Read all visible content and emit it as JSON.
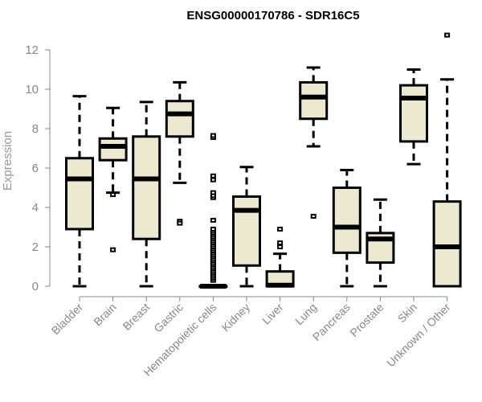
{
  "chart_data": {
    "type": "boxplot",
    "title": "ENSG00000170786 - SDR16C5",
    "xlabel": "",
    "ylabel": "Expression",
    "ylim": [
      0,
      12
    ],
    "yticks": [
      "0",
      "2",
      "4",
      "6",
      "8",
      "10",
      "12"
    ],
    "grid": false,
    "box_fill": "#ede8d0",
    "categories": [
      "Bladder",
      "Brain",
      "Breast",
      "Gastric",
      "Hematopoietic cells",
      "Kidney",
      "Liver",
      "Lung",
      "Pancreas",
      "Prostate",
      "Skin",
      "Unknown / Other"
    ],
    "boxes": [
      {
        "name": "Bladder",
        "whisker_low": 0,
        "q1": 2.9,
        "median": 5.45,
        "q3": 6.5,
        "whisker_high": 9.65,
        "outliers": []
      },
      {
        "name": "Brain",
        "whisker_low": 4.75,
        "q1": 6.4,
        "median": 7.1,
        "q3": 7.5,
        "whisker_high": 9.05,
        "outliers": [
          4.65,
          1.85
        ]
      },
      {
        "name": "Breast",
        "whisker_low": 0,
        "q1": 2.4,
        "median": 5.45,
        "q3": 7.6,
        "whisker_high": 9.35,
        "outliers": []
      },
      {
        "name": "Gastric",
        "whisker_low": 5.25,
        "q1": 7.6,
        "median": 8.75,
        "q3": 9.4,
        "whisker_high": 10.35,
        "outliers": [
          3.3,
          3.2
        ]
      },
      {
        "name": "Hematopoietic cells",
        "whisker_low": 0,
        "q1": 0,
        "median": 0,
        "q3": 0,
        "whisker_high": 0,
        "outliers": [
          0.3,
          0.4,
          0.5,
          0.6,
          0.7,
          0.8,
          0.9,
          1.0,
          1.1,
          1.2,
          1.3,
          1.4,
          1.5,
          1.6,
          1.7,
          1.8,
          1.9,
          2.0,
          2.1,
          2.2,
          2.3,
          2.4,
          2.5,
          2.6,
          2.7,
          2.8,
          2.9,
          3.35,
          4.5,
          4.6,
          4.75,
          5.4,
          5.6,
          7.55,
          7.65
        ]
      },
      {
        "name": "Kidney",
        "whisker_low": 0,
        "q1": 1.05,
        "median": 3.85,
        "q3": 4.55,
        "whisker_high": 6.05,
        "outliers": []
      },
      {
        "name": "Liver",
        "whisker_low": 0,
        "q1": 0,
        "median": 0.05,
        "q3": 0.75,
        "whisker_high": 1.65,
        "outliers": [
          2.0,
          2.2,
          2.9
        ]
      },
      {
        "name": "Lung",
        "whisker_low": 7.1,
        "q1": 8.5,
        "median": 9.6,
        "q3": 10.35,
        "whisker_high": 11.1,
        "outliers": [
          3.55
        ]
      },
      {
        "name": "Pancreas",
        "whisker_low": 0,
        "q1": 1.7,
        "median": 3.0,
        "q3": 5.0,
        "whisker_high": 5.9,
        "outliers": []
      },
      {
        "name": "Prostate",
        "whisker_low": 0,
        "q1": 1.2,
        "median": 2.4,
        "q3": 2.7,
        "whisker_high": 4.4,
        "outliers": []
      },
      {
        "name": "Skin",
        "whisker_low": 6.2,
        "q1": 7.35,
        "median": 9.55,
        "q3": 10.2,
        "whisker_high": 11.0,
        "outliers": []
      },
      {
        "name": "Unknown / Other",
        "whisker_low": 0,
        "q1": 0,
        "median": 2.0,
        "q3": 4.3,
        "whisker_high": 10.5,
        "outliers": [
          12.75
        ]
      }
    ]
  }
}
